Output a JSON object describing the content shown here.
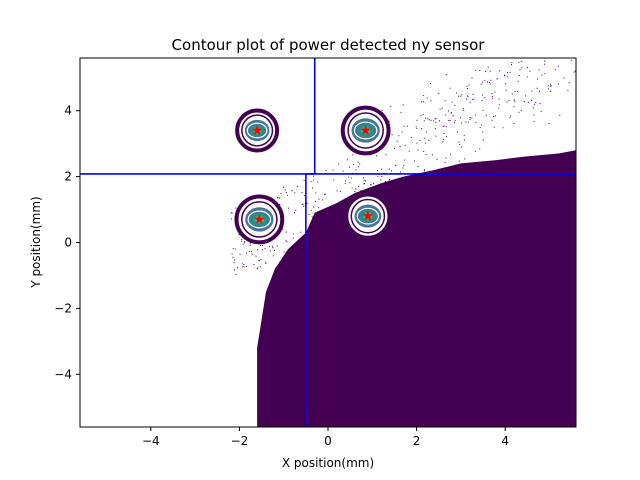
{
  "chart_data": {
    "type": "contour",
    "title": "Contour plot of power detected ny sensor",
    "xlabel": "X position(mm)",
    "ylabel": "Y position(mm)",
    "xlim": [
      -5.6,
      5.6
    ],
    "ylim": [
      -5.6,
      5.6
    ],
    "xticks": [
      -4,
      -2,
      0,
      2,
      4
    ],
    "yticks": [
      -4,
      -2,
      0,
      2,
      4
    ],
    "xtick_labels": [
      "−4",
      "−2",
      "0",
      "2",
      "4"
    ],
    "ytick_labels": [
      "−4",
      "−2",
      "0",
      "2",
      "4"
    ],
    "grid": false,
    "spots": [
      {
        "x": -1.6,
        "y": 3.4,
        "radius": 0.48
      },
      {
        "x": 0.85,
        "y": 3.4,
        "radius": 0.55
      },
      {
        "x": -1.55,
        "y": 0.7,
        "radius": 0.55
      },
      {
        "x": 0.9,
        "y": 0.8,
        "radius": 0.52
      }
    ],
    "centroid_marker": "red-star",
    "divider_lines": [
      {
        "x": [
          -0.3,
          -0.3
        ],
        "y": [
          5.6,
          2.08
        ]
      },
      {
        "x": [
          -5.6,
          5.6
        ],
        "y": [
          2.08,
          2.08
        ]
      },
      {
        "x": [
          -0.5,
          -0.5
        ],
        "y": [
          2.08,
          -5.6
        ]
      },
      {
        "x": [
          -0.5,
          -0.3
        ],
        "y": [
          2.08,
          2.08
        ]
      }
    ],
    "noise_region": "lower-right",
    "colors": {
      "fill": "#440154",
      "ring_outer": "#440154",
      "ring_mid": "#31688e",
      "ring_inner": "#35b779",
      "core": "#21918c",
      "divider": "#0000ff",
      "star": "#ff0000"
    }
  }
}
